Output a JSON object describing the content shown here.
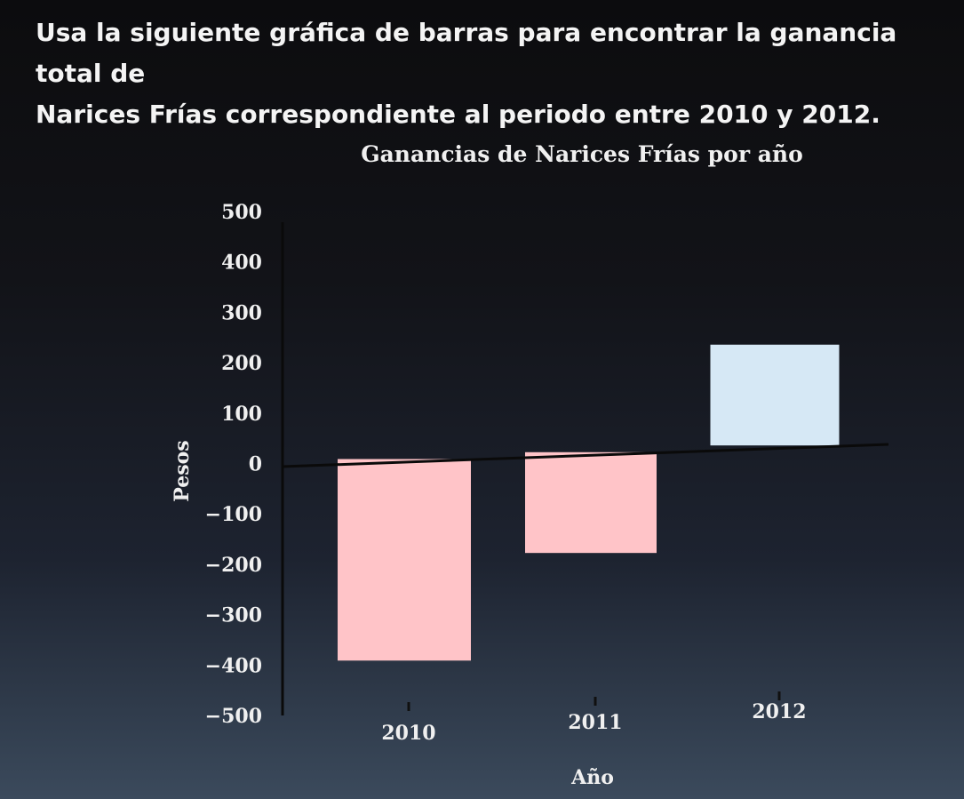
{
  "question": {
    "line1": "Usa la siguiente gráfica de barras para encontrar la ganancia total de",
    "line2": "Narices Frías correspondiente al periodo entre 2010 y 2012."
  },
  "chart_data": {
    "type": "bar",
    "title": "Ganancias de Narices Frías por año",
    "xlabel": "Año",
    "ylabel": "Pesos",
    "categories": [
      "2010",
      "2011",
      "2012"
    ],
    "values": [
      -400,
      -200,
      200
    ],
    "ylim": [
      -500,
      500
    ],
    "yticks": [
      "500",
      "400",
      "300",
      "200",
      "100",
      "0",
      "−100",
      "−200",
      "−300",
      "−400",
      "−500"
    ],
    "bar_colors": [
      "#ffc4c8",
      "#ffc4c8",
      "#d6e8f5"
    ],
    "grid": false,
    "legend": "none"
  }
}
